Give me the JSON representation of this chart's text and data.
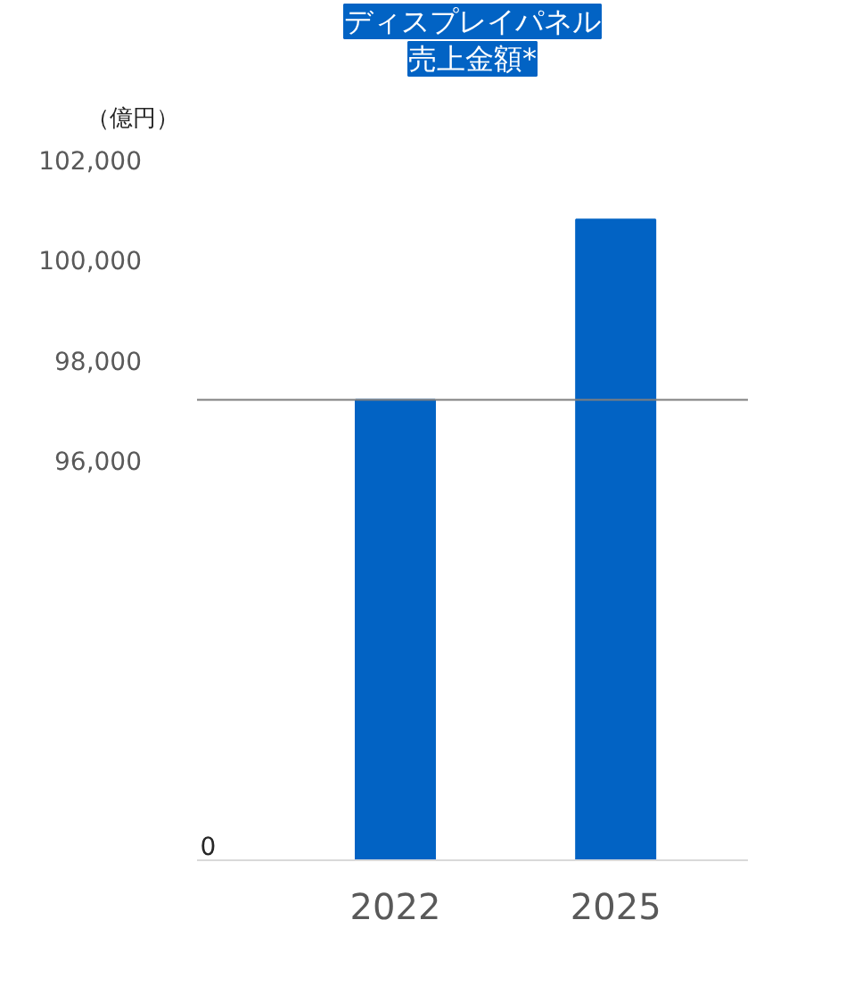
{
  "chart_data": {
    "type": "bar",
    "title": "ディスプレイパネル",
    "subtitle": "売上金額*",
    "ylabel": "（億円）",
    "categories": [
      "2022",
      "2025"
    ],
    "series": [
      {
        "color": "#0263c4",
        "values": [
          97200,
          100800
        ]
      }
    ],
    "ylim": [
      88000,
      102000
    ],
    "yticks": [
      {
        "value": 96000,
        "label": "96,000"
      },
      {
        "value": 98000,
        "label": "98,000"
      },
      {
        "value": 100000,
        "label": "100,000"
      },
      {
        "value": 102000,
        "label": "102,000"
      }
    ],
    "ref_lines": [
      {
        "axis": "y",
        "value": 97200,
        "label": null,
        "color": "#7f7f7f"
      }
    ],
    "annotations": [
      "0"
    ],
    "grid": false
  }
}
